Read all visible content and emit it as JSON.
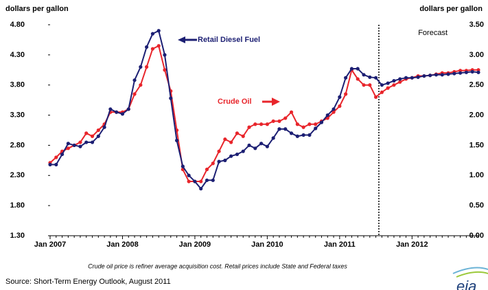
{
  "chart_data": {
    "type": "line",
    "y_label": "dollars per gallon",
    "y2_label": "dollars per gallon",
    "categories": [
      "Jan 2007",
      null,
      null,
      null,
      null,
      null,
      null,
      null,
      null,
      null,
      null,
      null,
      "Jan 2008",
      null,
      null,
      null,
      null,
      null,
      null,
      null,
      null,
      null,
      null,
      null,
      "Jan 2009",
      null,
      null,
      null,
      null,
      null,
      null,
      null,
      null,
      null,
      null,
      null,
      "Jan 2010",
      null,
      null,
      null,
      null,
      null,
      null,
      null,
      null,
      null,
      null,
      null,
      "Jan 2011",
      null,
      null,
      null,
      null,
      null,
      null,
      null,
      null,
      null,
      null,
      null,
      "Jan 2012",
      null,
      null,
      null,
      null,
      null,
      null,
      null,
      null,
      null,
      null,
      null
    ],
    "series": [
      {
        "name": "Retail Diesel Fuel",
        "color": "#1c1f73",
        "axis": "y",
        "values": [
          2.48,
          2.48,
          2.65,
          2.83,
          2.8,
          2.78,
          2.85,
          2.85,
          2.95,
          3.1,
          3.4,
          3.35,
          3.32,
          3.4,
          3.88,
          4.1,
          4.43,
          4.65,
          4.7,
          4.3,
          3.58,
          2.88,
          2.45,
          2.3,
          2.2,
          2.08,
          2.22,
          2.22,
          2.53,
          2.55,
          2.62,
          2.65,
          2.7,
          2.8,
          2.75,
          2.83,
          2.78,
          2.92,
          3.07,
          3.07,
          3.0,
          2.95,
          2.97,
          2.97,
          3.08,
          3.18,
          3.3,
          3.4,
          3.6,
          3.92,
          4.07,
          4.07,
          3.97,
          3.93,
          3.92,
          3.8,
          3.83,
          3.87,
          3.9,
          3.92,
          3.92,
          3.93,
          3.95,
          3.96,
          3.97,
          3.97,
          3.98,
          3.99,
          4.0,
          4.01,
          4.02,
          4.01
        ]
      },
      {
        "name": "Crude Oil",
        "color": "#e8252b",
        "axis": "y2",
        "values": [
          1.21,
          1.3,
          1.4,
          1.45,
          1.5,
          1.55,
          1.7,
          1.65,
          1.75,
          1.85,
          2.05,
          2.05,
          2.05,
          2.1,
          2.35,
          2.5,
          2.8,
          3.1,
          3.15,
          2.75,
          2.4,
          1.75,
          1.1,
          0.9,
          0.9,
          0.9,
          1.1,
          1.2,
          1.4,
          1.6,
          1.55,
          1.7,
          1.65,
          1.8,
          1.85,
          1.85,
          1.85,
          1.9,
          1.9,
          1.95,
          2.05,
          1.85,
          1.8,
          1.85,
          1.85,
          1.9,
          1.95,
          2.05,
          2.15,
          2.35,
          2.75,
          2.6,
          2.5,
          2.5,
          2.3,
          2.38,
          2.45,
          2.5,
          2.55,
          2.6,
          2.62,
          2.65,
          2.65,
          2.66,
          2.68,
          2.7,
          2.7,
          2.72,
          2.74,
          2.74,
          2.75,
          2.75
        ]
      }
    ],
    "ylim": [
      1.3,
      4.8
    ],
    "yticks": [
      {
        "value": 1.3,
        "label": "1.30"
      },
      {
        "value": 1.8,
        "label": "1.80"
      },
      {
        "value": 2.3,
        "label": "2.30"
      },
      {
        "value": 2.8,
        "label": "2.80"
      },
      {
        "value": 3.3,
        "label": "3.30"
      },
      {
        "value": 3.8,
        "label": "3.80"
      },
      {
        "value": 4.3,
        "label": "4.30"
      },
      {
        "value": 4.8,
        "label": "4.80"
      }
    ],
    "y2lim": [
      0,
      3.5
    ],
    "y2ticks": [
      {
        "value": 0,
        "label": "0.00"
      },
      {
        "value": 0.5,
        "label": "0.50"
      },
      {
        "value": 1,
        "label": "1.00"
      },
      {
        "value": 1.5,
        "label": "1.50"
      },
      {
        "value": 2,
        "label": "2.00"
      },
      {
        "value": 2.5,
        "label": "2.50"
      },
      {
        "value": 3,
        "label": "3.00"
      },
      {
        "value": 3.5,
        "label": "3.50"
      }
    ],
    "annotations": [
      "Forecast"
    ],
    "footnote": "Crude oil price is refiner average acquisition cost.  Retail prices include State and Federal taxes",
    "source": "Source: Short-Term Energy Outlook, August 2011",
    "logo": "eia"
  }
}
